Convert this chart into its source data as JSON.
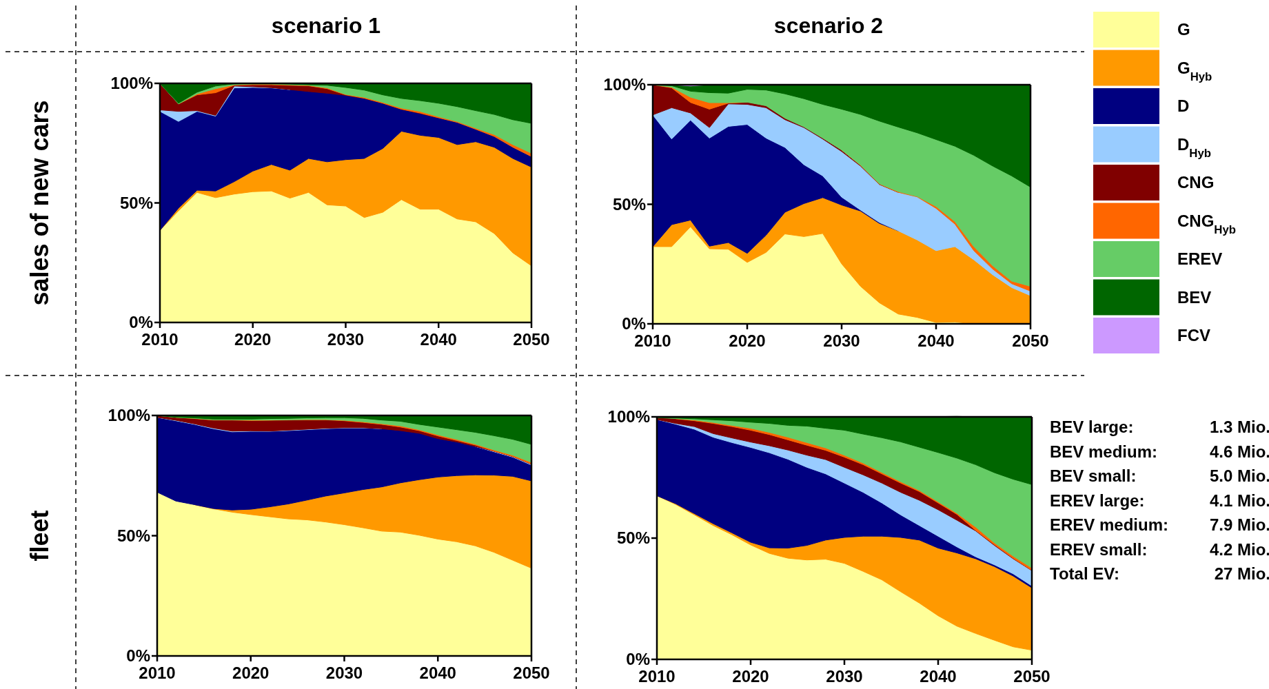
{
  "chart_data": [
    {
      "type": "area",
      "stacked": true,
      "title": "scenario 1",
      "ylabel": "sales of new cars",
      "x": [
        2010,
        2012,
        2014,
        2016,
        2018,
        2020,
        2022,
        2024,
        2026,
        2028,
        2030,
        2032,
        2034,
        2036,
        2038,
        2040,
        2042,
        2044,
        2046,
        2048,
        2050
      ],
      "xlim": [
        2010,
        2050
      ],
      "xticks": [
        2010,
        2020,
        2030,
        2040,
        2050
      ],
      "ylim": [
        0,
        100
      ],
      "yticks": [
        {
          "value": 0,
          "label": "0%"
        },
        {
          "value": 50,
          "label": "50%"
        },
        {
          "value": 100,
          "label": "100%"
        }
      ],
      "series": [
        {
          "color": "#ffff99",
          "values": [
            38.5,
            46.7,
            54.4,
            52.2,
            53.7,
            54.7,
            55,
            52,
            54.4,
            49.2,
            48.7,
            43.9,
            46.1,
            51.4,
            47.4,
            47.4,
            43.3,
            42.1,
            37.2,
            29.1,
            23.7
          ]
        },
        {
          "color": "#ff9900",
          "values": [
            0,
            1.1,
            0.9,
            2.8,
            5.2,
            8.6,
            11.1,
            11.7,
            14.2,
            18,
            19.4,
            24.7,
            26.7,
            28.6,
            30.9,
            30,
            31.1,
            33.5,
            36.1,
            39.5,
            41.3
          ]
        },
        {
          "color": "#000080",
          "values": [
            49.8,
            36.3,
            33,
            31.3,
            39.2,
            35,
            32,
            33.7,
            28,
            28.7,
            26.9,
            25.1,
            18.9,
            9.2,
            9.1,
            8.2,
            9.3,
            5.2,
            4.5,
            4.7,
            4.4
          ]
        },
        {
          "color": "#99ccff",
          "values": [
            0.6,
            4.2,
            0.3,
            0.3,
            0.8,
            0.3,
            0.1,
            0,
            null,
            null,
            null,
            null,
            null,
            null,
            null,
            null,
            null,
            null,
            null,
            null,
            null
          ]
        },
        {
          "color": "#800000",
          "values": [
            11.1,
            3.1,
            6.6,
            9.5,
            0.3,
            0.8,
            1.2,
            1.8,
            2.4,
            1.9,
            0.2,
            0.1,
            0,
            0,
            0.2,
            0,
            null,
            null,
            null,
            null,
            null
          ]
        },
        {
          "color": "#ff6600",
          "values": [
            null,
            0,
            0.4,
            1.7,
            0.2,
            0.3,
            0.3,
            0.2,
            0.2,
            0.3,
            0.2,
            0.4,
            0.4,
            0.5,
            0.7,
            0.5,
            0.4,
            0.5,
            0.8,
            1.1,
            1.4
          ]
        },
        {
          "color": "#66cc66",
          "values": [
            0,
            0.3,
            0.7,
            1.1,
            0.4,
            0.2,
            0.2,
            0.3,
            0.2,
            1.1,
            2.9,
            3,
            3.1,
            4,
            4.5,
            5.6,
            6.2,
            7.3,
            8.4,
            10.4,
            12.5
          ]
        },
        {
          "color": "#006600",
          "values": [
            0,
            8.3,
            3.7,
            1.1,
            0.2,
            0.1,
            0.1,
            0.3,
            0.6,
            0.8,
            1.7,
            2.8,
            4.8,
            6.3,
            7.2,
            8.3,
            9.7,
            11.4,
            13,
            15.2,
            16.7
          ]
        }
      ]
    },
    {
      "type": "area",
      "stacked": true,
      "title": "scenario 2",
      "legend": "right",
      "x": [
        2010,
        2012,
        2014,
        2016,
        2018,
        2020,
        2022,
        2024,
        2026,
        2028,
        2030,
        2032,
        2034,
        2036,
        2038,
        2040,
        2042,
        2044,
        2046,
        2048,
        2050
      ],
      "xlim": [
        2010,
        2050
      ],
      "xticks": [
        2010,
        2020,
        2030,
        2040,
        2050
      ],
      "ylim": [
        0,
        100
      ],
      "yticks": [
        {
          "value": 0,
          "label": "0%"
        },
        {
          "value": 50,
          "label": "50%"
        },
        {
          "value": 100,
          "label": "100%"
        }
      ],
      "series": [
        {
          "name": "G",
          "color": "#ffff99",
          "values": [
            32.3,
            32.3,
            40.6,
            31.4,
            31.2,
            25.7,
            29.9,
            37.6,
            36.5,
            37.8,
            25.1,
            15.7,
            8.8,
            4.1,
            2.7,
            0.6,
            0.8,
            0,
            null,
            null,
            null
          ]
        },
        {
          "name": "G$_{Hyb}$",
          "color": "#ff9900",
          "values": [
            0,
            9.2,
            2.8,
            1.1,
            2.8,
            3.8,
            7.2,
            9.1,
            13.8,
            15,
            24.6,
            31.5,
            33.2,
            34.8,
            32.4,
            30,
            31.5,
            26.8,
            20.5,
            15.2,
            11.8
          ]
        },
        {
          "name": "D",
          "color": "#000080",
          "values": [
            55.1,
            35.8,
            41.8,
            45.2,
            48.6,
            53.9,
            40.6,
            27.1,
            16.3,
            9.1,
            3.3,
            0.4,
            0.4,
            0,
            null,
            null,
            null,
            null,
            null,
            null,
            null
          ]
        },
        {
          "name": "D$_{Hyb}$",
          "color": "#99ccff",
          "values": [
            0,
            13.1,
            3,
            4.4,
            9.4,
            8.4,
            12.7,
            11.6,
            15.5,
            15.4,
            19.1,
            18.4,
            15.9,
            16.1,
            18,
            17.7,
            9.4,
            3.8,
            2.4,
            1.6,
            1.9
          ]
        },
        {
          "name": "CNG",
          "color": "#800000",
          "values": [
            12.6,
            8.3,
            4.4,
            7.7,
            0.3,
            0.9,
            0.8,
            0.6,
            0.3,
            0.4,
            0.6,
            0.3,
            0.1,
            0,
            null,
            null,
            null,
            null,
            null,
            null,
            null
          ]
        },
        {
          "name": "CNG$_{Hyb}$",
          "color": "#ff6600",
          "values": [
            0,
            0.3,
            2.2,
            2.7,
            0.2,
            0,
            null,
            null,
            null,
            null,
            0,
            0.1,
            0.2,
            0.3,
            0.2,
            0.8,
            1.1,
            1.7,
            1.4,
            1.1,
            2
          ]
        },
        {
          "name": "EREV",
          "color": "#66cc66",
          "values": [
            0,
            0.6,
            2.5,
            4.2,
            4,
            5.4,
            6.6,
            10.2,
            11.8,
            14.1,
            17.1,
            21.2,
            26.2,
            27,
            26.6,
            28,
            31.5,
            38.2,
            41.7,
            44,
            41.5
          ]
        },
        {
          "name": "BEV",
          "color": "#006600",
          "values": [
            0,
            0.4,
            2.2,
            3.3,
            3.5,
            1.9,
            2.2,
            3.8,
            5.8,
            8.2,
            10.2,
            12.4,
            15.2,
            17.7,
            20.1,
            22.9,
            25.7,
            29.5,
            34,
            38.1,
            42.8
          ]
        },
        {
          "name": "FCV",
          "color": "#cc99ff",
          "values": [
            null,
            0,
            0.5,
            0,
            null,
            null,
            null,
            null,
            null,
            null,
            null,
            null,
            null,
            null,
            null,
            null,
            null,
            null,
            null,
            null,
            null
          ]
        }
      ]
    },
    {
      "type": "area",
      "stacked": true,
      "ylabel": "fleet",
      "x": [
        2010,
        2012,
        2014,
        2016,
        2018,
        2020,
        2022,
        2024,
        2026,
        2028,
        2030,
        2032,
        2034,
        2036,
        2038,
        2040,
        2042,
        2044,
        2046,
        2048,
        2050
      ],
      "xlim": [
        2010,
        2050
      ],
      "xticks": [
        2010,
        2020,
        2030,
        2040,
        2050
      ],
      "ylim": [
        0,
        100
      ],
      "yticks": [
        {
          "value": 0,
          "label": "0%"
        },
        {
          "value": 50,
          "label": "50%"
        },
        {
          "value": 100,
          "label": "100%"
        }
      ],
      "series": [
        {
          "color": "#ffff99",
          "values": [
            68.1,
            64.4,
            62.9,
            61.2,
            59.8,
            58.8,
            57.9,
            57,
            56.6,
            55.7,
            54.6,
            53.3,
            51.9,
            51.5,
            50.2,
            48.6,
            47.5,
            45.8,
            43.1,
            39.8,
            36.5
          ]
        },
        {
          "color": "#ff9900",
          "values": [
            null,
            null,
            0,
            0.1,
            0.9,
            2.2,
            4.1,
            6.2,
            8.2,
            10.8,
            13.2,
            15.9,
            18.4,
            20.5,
            23.1,
            25.8,
            27.5,
            29.5,
            32.1,
            34.9,
            36.3
          ]
        },
        {
          "color": "#000080",
          "values": [
            31.1,
            33.4,
            33.4,
            33.2,
            32.5,
            32.4,
            31.4,
            30.5,
            29.3,
            28,
            27,
            25.6,
            24.2,
            21.7,
            19.3,
            16,
            14,
            11.8,
            9.7,
            8,
            6.6
          ]
        },
        {
          "color": "#99ccff",
          "values": [
            0,
            0.2,
            0.2,
            0.3,
            0.3,
            0.2,
            0.1,
            0.2,
            0.2,
            0.2,
            0.1,
            0.1,
            0,
            null,
            null,
            null,
            null,
            0,
            0.2,
            0.2,
            0.3
          ]
        },
        {
          "color": "#800000",
          "values": [
            0.8,
            1.2,
            2.2,
            3.3,
            4.6,
            4.3,
            4.5,
            4.2,
            3.9,
            3.5,
            2.9,
            2.2,
            1.8,
            1.5,
            1.1,
            1.1,
            0.6,
            0.6,
            0.1,
            0.1,
            0.1
          ]
        },
        {
          "color": "#ff6600",
          "values": [
            null,
            0,
            0.1,
            0.1,
            0.1,
            0.2,
            0.1,
            0.1,
            0.1,
            0.1,
            0.2,
            0.3,
            0.3,
            0.5,
            0.4,
            0.5,
            0.5,
            0.4,
            0.5,
            0.5,
            0.7
          ]
        },
        {
          "color": "#66cc66",
          "values": [
            0,
            0.1,
            0.2,
            0.3,
            0.3,
            0.4,
            0.6,
            0.6,
            0.7,
            0.8,
            1.1,
            1.4,
            1.5,
            1.9,
            2.2,
            3.2,
            4,
            4.9,
            5.9,
            6.6,
            7.5
          ]
        },
        {
          "color": "#006600",
          "values": [
            0,
            0.7,
            1,
            1.5,
            1.5,
            1.5,
            1.3,
            1.2,
            1,
            0.9,
            0.9,
            1.2,
            1.9,
            2.4,
            3.7,
            4.8,
            5.9,
            7,
            8.4,
            9.9,
            12
          ]
        }
      ]
    },
    {
      "type": "area",
      "stacked": true,
      "x": [
        2010,
        2012,
        2014,
        2016,
        2018,
        2020,
        2022,
        2024,
        2026,
        2028,
        2030,
        2032,
        2034,
        2036,
        2038,
        2040,
        2042,
        2044,
        2046,
        2048,
        2050
      ],
      "xlim": [
        2010,
        2050
      ],
      "xticks": [
        2010,
        2020,
        2030,
        2040,
        2050
      ],
      "ylim": [
        0,
        100
      ],
      "yticks": [
        {
          "value": 0,
          "label": "0%"
        },
        {
          "value": 50,
          "label": "50%"
        },
        {
          "value": 100,
          "label": "100%"
        }
      ],
      "annotations": [
        "BEV large:\t1.3 Mio.",
        "BEV medium:\t4.6 Mio.",
        "BEV small:\t5.0 Mio.",
        "EREV large:\t4.1 Mio.",
        "EREV medium:\t7.9 Mio.",
        "EREV small:\t4.2 Mio.",
        "Total EV:\t27 Mio."
      ],
      "series": [
        {
          "color": "#ffff99",
          "values": [
            67.5,
            63.9,
            59.6,
            55.2,
            51.4,
            47.2,
            43.7,
            41.7,
            41,
            41.3,
            39.6,
            36.3,
            32.8,
            27.9,
            23.2,
            18,
            13.7,
            10.7,
            7.9,
            5.2,
            3.8
          ]
        },
        {
          "color": "#ff9900",
          "values": [
            0,
            0.3,
            0.5,
            0.8,
            0.8,
            1.1,
            2.3,
            4.2,
            6,
            7.9,
            10.7,
            14.5,
            18,
            22.4,
            26,
            27.9,
            30.2,
            30.8,
            30.4,
            29.2,
            25.7
          ]
        },
        {
          "color": "#000080",
          "values": [
            31.4,
            32.8,
            34.8,
            35.6,
            37.2,
            39.1,
            39.2,
            36.6,
            32.2,
            27.3,
            22.4,
            18.1,
            13.7,
            9.3,
            6,
            4.9,
            2.5,
            0.8,
            0.7,
            0.9,
            0.8
          ]
        },
        {
          "color": "#99ccff",
          "values": [
            0,
            0.3,
            1.1,
            1.5,
            1.9,
            2.2,
            2.9,
            3.8,
            5,
            5.9,
            6.5,
            7.2,
            8.2,
            9.3,
            10.4,
            10.9,
            11,
            10.7,
            8,
            6.2,
            6.3
          ]
        },
        {
          "color": "#800000",
          "values": [
            0.8,
            1.9,
            2.4,
            4.2,
            4.7,
            4.9,
            4.6,
            4.2,
            4.1,
            3.8,
            4.2,
            4.2,
            3.8,
            3.8,
            3.6,
            2.8,
            2.4,
            0.2,
            0.3,
            0.2,
            0.1
          ]
        },
        {
          "color": "#ff6600",
          "values": [
            null,
            0.1,
            0.3,
            0.4,
            0.5,
            0.8,
            0.9,
            1.1,
            1.1,
            1,
            0.8,
            0.7,
            0.6,
            0.6,
            0.5,
            0.5,
            0.5,
            1.4,
            0.8,
            0.9,
            1
          ]
        },
        {
          "color": "#66cc66",
          "values": [
            0,
            0.2,
            0.5,
            1.1,
            1.9,
            2.5,
            3.7,
            4.9,
            6.8,
            8.1,
            10.3,
            11.9,
            14.3,
            16.4,
            17.8,
            20.3,
            22.7,
            25.7,
            28.9,
            31.7,
            34.4
          ]
        },
        {
          "color": "#006600",
          "values": [
            0.3,
            0.5,
            0.8,
            1.2,
            1.6,
            2.2,
            2.7,
            3.5,
            3.8,
            4.7,
            5.5,
            7.1,
            8.7,
            10.4,
            12.6,
            14.8,
            17.2,
            19.7,
            23,
            25.7,
            27.9
          ]
        }
      ]
    }
  ]
}
